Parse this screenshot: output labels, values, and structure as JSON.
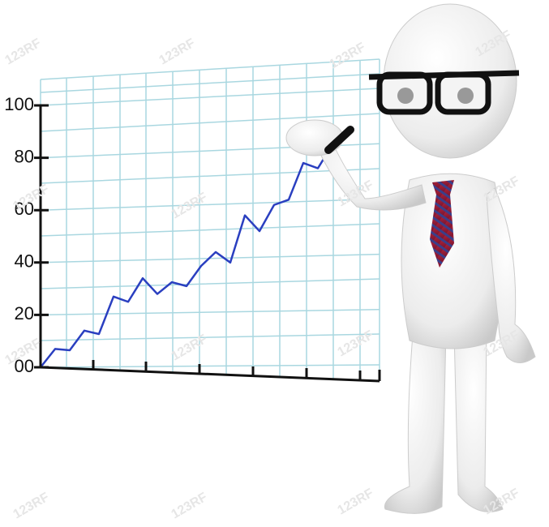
{
  "chart_data": {
    "type": "line",
    "categories": [
      null,
      null,
      null,
      null,
      null,
      null,
      null,
      null,
      null,
      null,
      null,
      null,
      null,
      null,
      null,
      null,
      null,
      null,
      null,
      null,
      null
    ],
    "values": [
      0,
      7,
      6.5,
      14,
      12.7,
      27,
      25,
      34,
      28,
      32.5,
      31,
      38.7,
      44,
      40,
      58,
      52,
      62,
      64,
      78,
      76,
      85
    ],
    "color": "#2a3fc0",
    "ylim": [
      0,
      100
    ],
    "yticks": [
      {
        "value": 0,
        "label": "00"
      },
      20,
      40,
      60,
      80,
      100
    ],
    "grid": true
  },
  "watermark": "123RF"
}
